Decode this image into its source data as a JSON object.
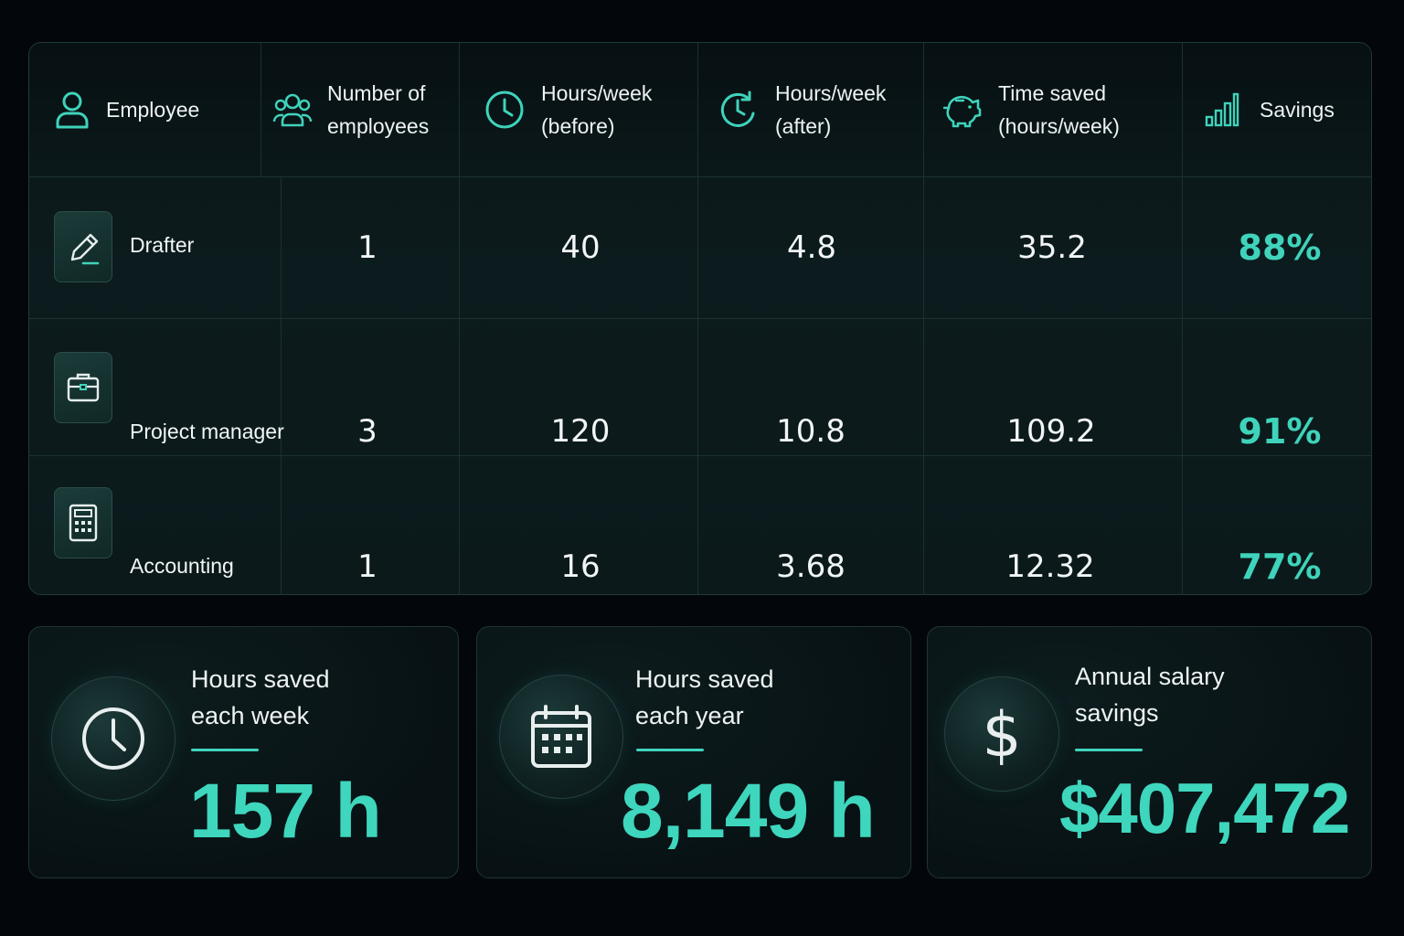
{
  "table": {
    "headers": {
      "employee": "Employee",
      "num_employees_1": "Number of",
      "num_employees_2": "employees",
      "before_1": "Hours/week",
      "before_2": "(before)",
      "after_1": "Hours/week",
      "after_2": "(after)",
      "saved_1": "Time saved",
      "saved_2": "(hours/week)",
      "savings": "Savings"
    },
    "rows": [
      {
        "role": "Drafter",
        "icon": "pencil-icon",
        "count": "1",
        "before": "40",
        "after": "4.8",
        "saved": "35.2",
        "savings": "88%"
      },
      {
        "role": "Project manager",
        "icon": "briefcase-icon",
        "count": "3",
        "before": "120",
        "after": "10.8",
        "saved": "109.2",
        "savings": "91%"
      },
      {
        "role": "Accounting",
        "icon": "calculator-icon",
        "count": "1",
        "before": "16",
        "after": "3.68",
        "saved": "12.32",
        "savings": "77%"
      }
    ]
  },
  "stats": [
    {
      "title": "Hours saved\neach week",
      "value": "157 h",
      "icon": "clock-icon"
    },
    {
      "title": "Hours saved\neach year",
      "value": "8,149 h",
      "icon": "calendar-icon"
    },
    {
      "title": "Annual salary\nsavings",
      "value": "$407,472",
      "icon": "dollar-icon"
    }
  ],
  "colors": {
    "accent": "#3fd3bb",
    "background": "#03070b",
    "card": "#0b181a"
  }
}
